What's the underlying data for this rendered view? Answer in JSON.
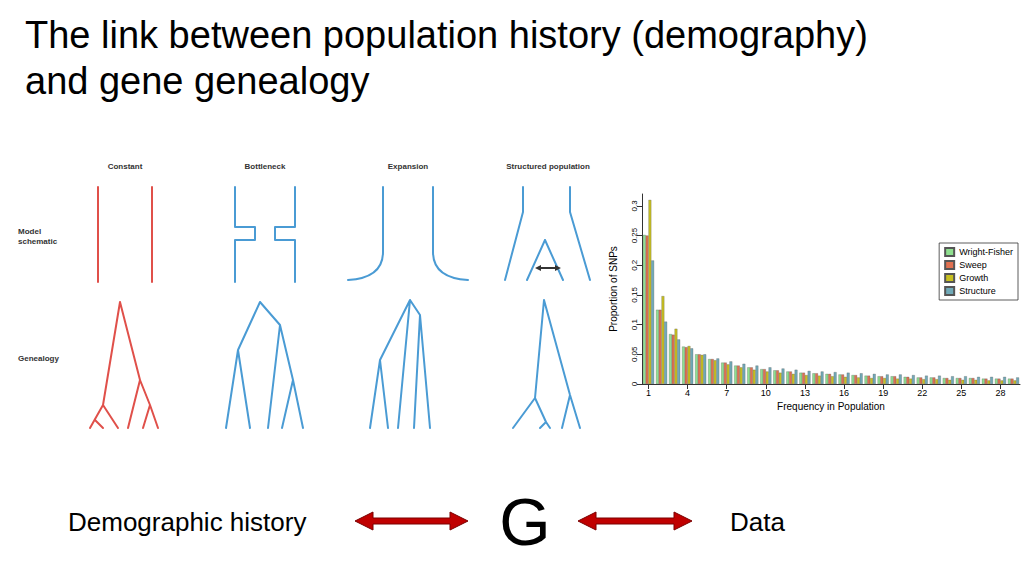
{
  "title": [
    "The link between population history (demography)",
    "and gene genealogy"
  ],
  "diagram": {
    "columns": [
      "Constant",
      "Bottleneck",
      "Expansion",
      "Structured population"
    ],
    "rows": [
      [
        "Model",
        "schematic"
      ],
      [
        "Genealogy"
      ]
    ]
  },
  "flow": {
    "nodes": [
      "Demographic history",
      "G",
      "Data"
    ]
  },
  "chart_data": {
    "type": "bar",
    "categories": [
      1,
      null,
      null,
      4,
      null,
      null,
      7,
      null,
      null,
      10,
      null,
      null,
      13,
      null,
      null,
      16,
      null,
      null,
      19,
      null,
      null,
      22,
      null,
      null,
      25,
      null,
      null,
      28,
      null
    ],
    "series": [
      {
        "name": "Wright-Fisher",
        "color": "#8fe08f",
        "values": [
          0.251,
          0.125,
          0.084,
          0.063,
          0.05,
          0.042,
          0.036,
          0.031,
          0.028,
          0.025,
          0.023,
          0.021,
          0.019,
          0.018,
          0.017,
          0.016,
          0.015,
          0.014,
          0.013,
          0.013,
          0.012,
          0.011,
          0.011,
          0.01,
          0.01,
          0.01,
          0.009,
          0.009,
          0.009
        ]
      },
      {
        "name": "Sweep",
        "color": "#e07050",
        "values": [
          0.25,
          0.125,
          0.083,
          0.062,
          0.05,
          0.042,
          0.036,
          0.031,
          0.028,
          0.025,
          0.023,
          0.021,
          0.019,
          0.018,
          0.017,
          0.016,
          0.015,
          0.014,
          0.013,
          0.013,
          0.012,
          0.011,
          0.011,
          0.01,
          0.01,
          0.01,
          0.009,
          0.009,
          0.009
        ]
      },
      {
        "name": "Growth",
        "color": "#c8c020",
        "values": [
          0.31,
          0.148,
          0.093,
          0.064,
          0.049,
          0.04,
          0.033,
          0.028,
          0.024,
          0.021,
          0.019,
          0.017,
          0.015,
          0.014,
          0.013,
          0.012,
          0.011,
          0.01,
          0.01,
          0.009,
          0.009,
          0.008,
          0.008,
          0.007,
          0.007,
          0.007,
          0.006,
          0.006,
          0.006
        ]
      },
      {
        "name": "Structure",
        "color": "#70aab8",
        "values": [
          0.208,
          0.105,
          0.075,
          0.06,
          0.05,
          0.043,
          0.038,
          0.034,
          0.031,
          0.028,
          0.026,
          0.024,
          0.022,
          0.021,
          0.02,
          0.019,
          0.018,
          0.017,
          0.016,
          0.016,
          0.015,
          0.014,
          0.014,
          0.013,
          0.013,
          0.012,
          0.012,
          0.012,
          0.011
        ]
      }
    ],
    "xlabel": "Frequency in Population",
    "ylabel": "Proportion of SNPs",
    "ylim": [
      0,
      0.32
    ],
    "yticks": [
      0,
      0.05,
      0.1,
      0.15,
      0.2,
      0.25,
      0.3
    ],
    "grid": false,
    "legend": "right"
  }
}
